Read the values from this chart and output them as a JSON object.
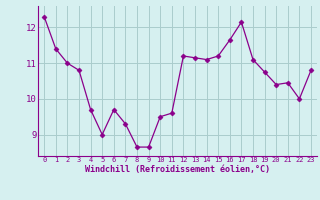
{
  "x": [
    0,
    1,
    2,
    3,
    4,
    5,
    6,
    7,
    8,
    9,
    10,
    11,
    12,
    13,
    14,
    15,
    16,
    17,
    18,
    19,
    20,
    21,
    22,
    23
  ],
  "y": [
    12.3,
    11.4,
    11.0,
    10.8,
    9.7,
    9.0,
    9.7,
    9.3,
    8.65,
    8.65,
    9.5,
    9.6,
    11.2,
    11.15,
    11.1,
    11.2,
    11.65,
    12.15,
    11.1,
    10.75,
    10.4,
    10.45,
    10.0,
    10.8
  ],
  "line_color": "#8B008B",
  "marker": "D",
  "marker_size": 2.5,
  "bg_color": "#d6f0f0",
  "grid_color": "#aacccc",
  "xlabel": "Windchill (Refroidissement éolien,°C)",
  "xlabel_color": "#8B008B",
  "tick_color": "#8B008B",
  "ylim": [
    8.4,
    12.6
  ],
  "yticks": [
    9,
    10,
    11,
    12
  ],
  "xlim": [
    -0.5,
    23.5
  ],
  "figwidth": 3.2,
  "figheight": 2.0,
  "dpi": 100
}
